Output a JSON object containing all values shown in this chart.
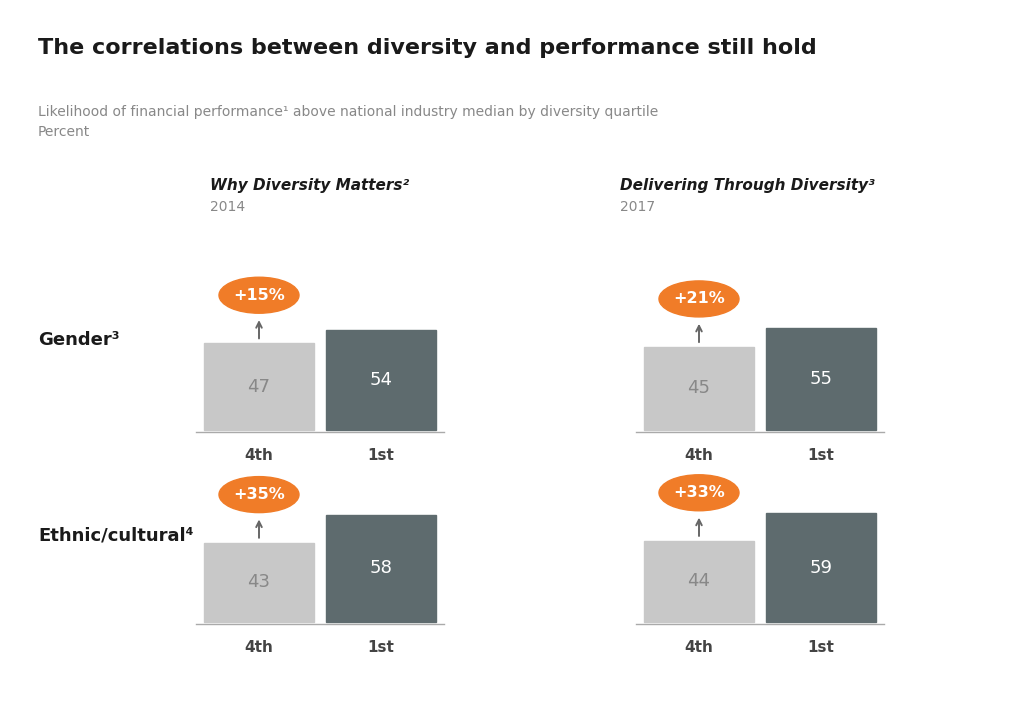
{
  "title": "The correlations between diversity and performance still hold",
  "subtitle_line1": "Likelihood of financial performance¹ above national industry median by diversity quartile",
  "subtitle_line2": "Percent",
  "col1_title": "Why Diversity Matters²",
  "col1_year": "2014",
  "col2_title": "Delivering Through Diversity³",
  "col2_year": "2017",
  "row1_label": "Gender³",
  "row2_label": "Ethnic/cultural⁴",
  "chart_data": {
    "gender_2014": {
      "q4": 47,
      "q1": 54,
      "diff": "+15%"
    },
    "gender_2017": {
      "q4": 45,
      "q1": 55,
      "diff": "+21%"
    },
    "ethnic_2014": {
      "q4": 43,
      "q1": 58,
      "diff": "+35%"
    },
    "ethnic_2017": {
      "q4": 44,
      "q1": 59,
      "diff": "+33%"
    }
  },
  "background_color": "#ffffff",
  "light_bar": "#c8c8c8",
  "dark_bar": "#5e6b6e",
  "orange": "#f07c28",
  "title_color": "#1a1a1a",
  "subtitle_color": "#888888",
  "label_color": "#1a1a1a",
  "bar_text_light": "#888888",
  "bar_text_dark": "#ffffff",
  "axis_line_color": "#aaaaaa",
  "tick_label_color": "#444444"
}
